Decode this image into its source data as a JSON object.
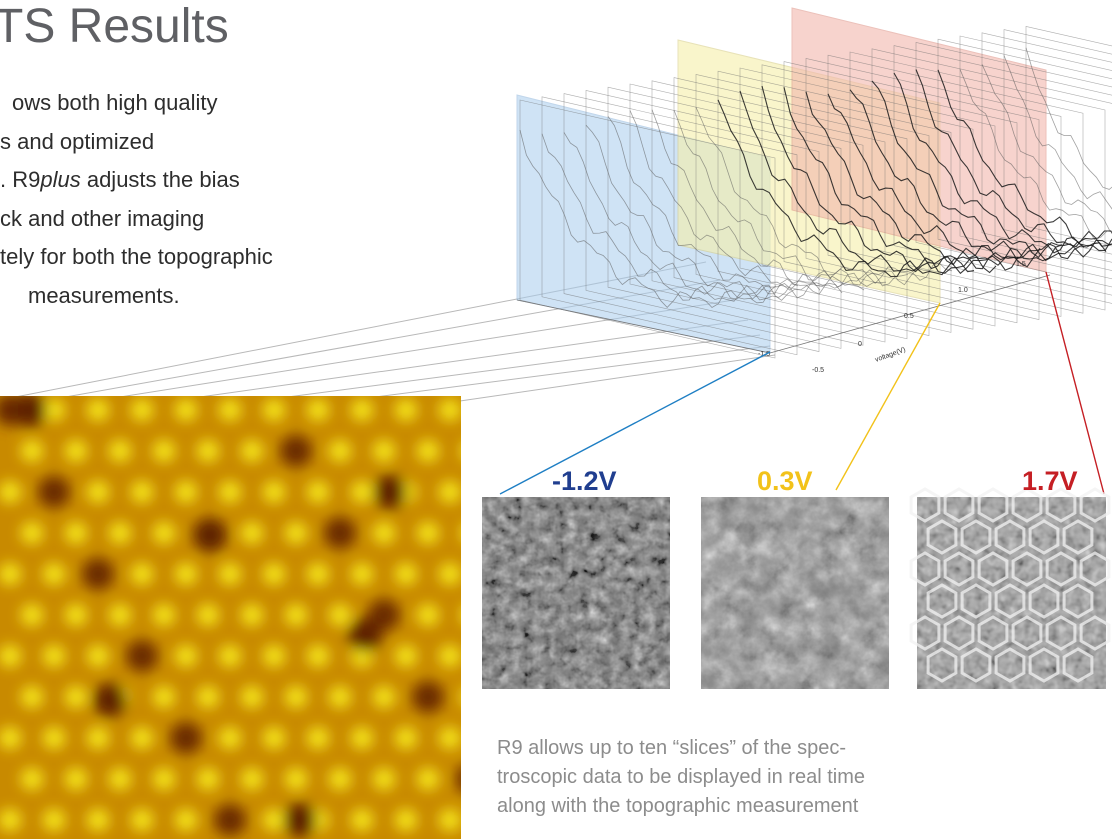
{
  "title": "TS Results",
  "body_lines": [
    "ows both high quality",
    "s and optimized",
    ". R9",
    "plus",
    " adjusts the bias",
    "ck and other imaging",
    "tely for both the topographic",
    "measurements."
  ],
  "slice_labels": [
    {
      "text": "-1.2V",
      "color": "#203e8f"
    },
    {
      "text": "0.3V",
      "color": "#f2c21a"
    },
    {
      "text": "1.7V",
      "color": "#c51f24"
    }
  ],
  "plot_axis_labels": [
    "voltage(V)",
    "-1.5",
    "-0.5",
    "0",
    "0.5",
    "1.0",
    "1.5"
  ],
  "caption_lines": [
    "R9 allows up to ten “slices” of the spec-",
    "troscopic data to be displayed in real time",
    "along with the topographic measurement"
  ],
  "colors": {
    "title": "#5f6064",
    "body": "#2d2d2d",
    "caption": "#8c8c8c",
    "blue_panel": "#a9cdee",
    "yellow_panel": "#f6f0a9",
    "red_panel": "#f2b7ad",
    "blue_line": "#1f7fc4",
    "yellow_line": "#f2c21a",
    "red_line": "#c51f24"
  }
}
